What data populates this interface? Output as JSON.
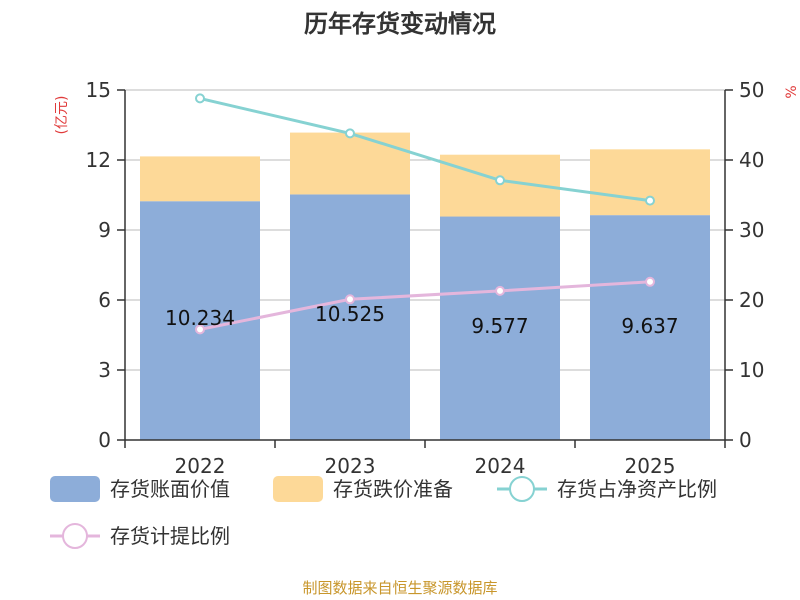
{
  "title": "历年存货变动情况",
  "source": "制图数据来自恒生聚源数据库",
  "units": {
    "left": "(亿元)",
    "right": "%"
  },
  "colors": {
    "book_value": "#8dadd9",
    "reserve": "#fdd998",
    "share_line": "#86d2d2",
    "provision_line": "#e4b6dc",
    "axis": "#333333",
    "grid": "#bbbbbb"
  },
  "chart_data": {
    "type": "bar",
    "stacked": true,
    "categories": [
      "2022",
      "2023",
      "2024",
      "2025"
    ],
    "y_left": {
      "min": 0,
      "max": 15,
      "ticks": [
        "0",
        "3",
        "6",
        "9",
        "12",
        "15"
      ]
    },
    "y_right": {
      "min": 0,
      "max": 50,
      "ticks": [
        "0",
        "10",
        "20",
        "30",
        "40",
        "50"
      ]
    },
    "grid": true,
    "legend_position": "bottom",
    "series": [
      {
        "name": "存货账面价值",
        "kind": "bar",
        "axis": "left",
        "values": [
          10.234,
          10.525,
          9.577,
          9.637
        ],
        "labels": [
          "10.234",
          "10.525",
          "9.577",
          "9.637"
        ]
      },
      {
        "name": "存货跌价准备",
        "kind": "bar",
        "axis": "left",
        "values": [
          1.92,
          2.65,
          2.65,
          2.82
        ]
      },
      {
        "name": "存货占净资产比例",
        "kind": "line",
        "axis": "right",
        "values": [
          48.8,
          43.8,
          37.1,
          34.2
        ]
      },
      {
        "name": "存货计提比例",
        "kind": "line",
        "axis": "right",
        "values": [
          15.8,
          20.1,
          21.3,
          22.6
        ]
      }
    ]
  }
}
